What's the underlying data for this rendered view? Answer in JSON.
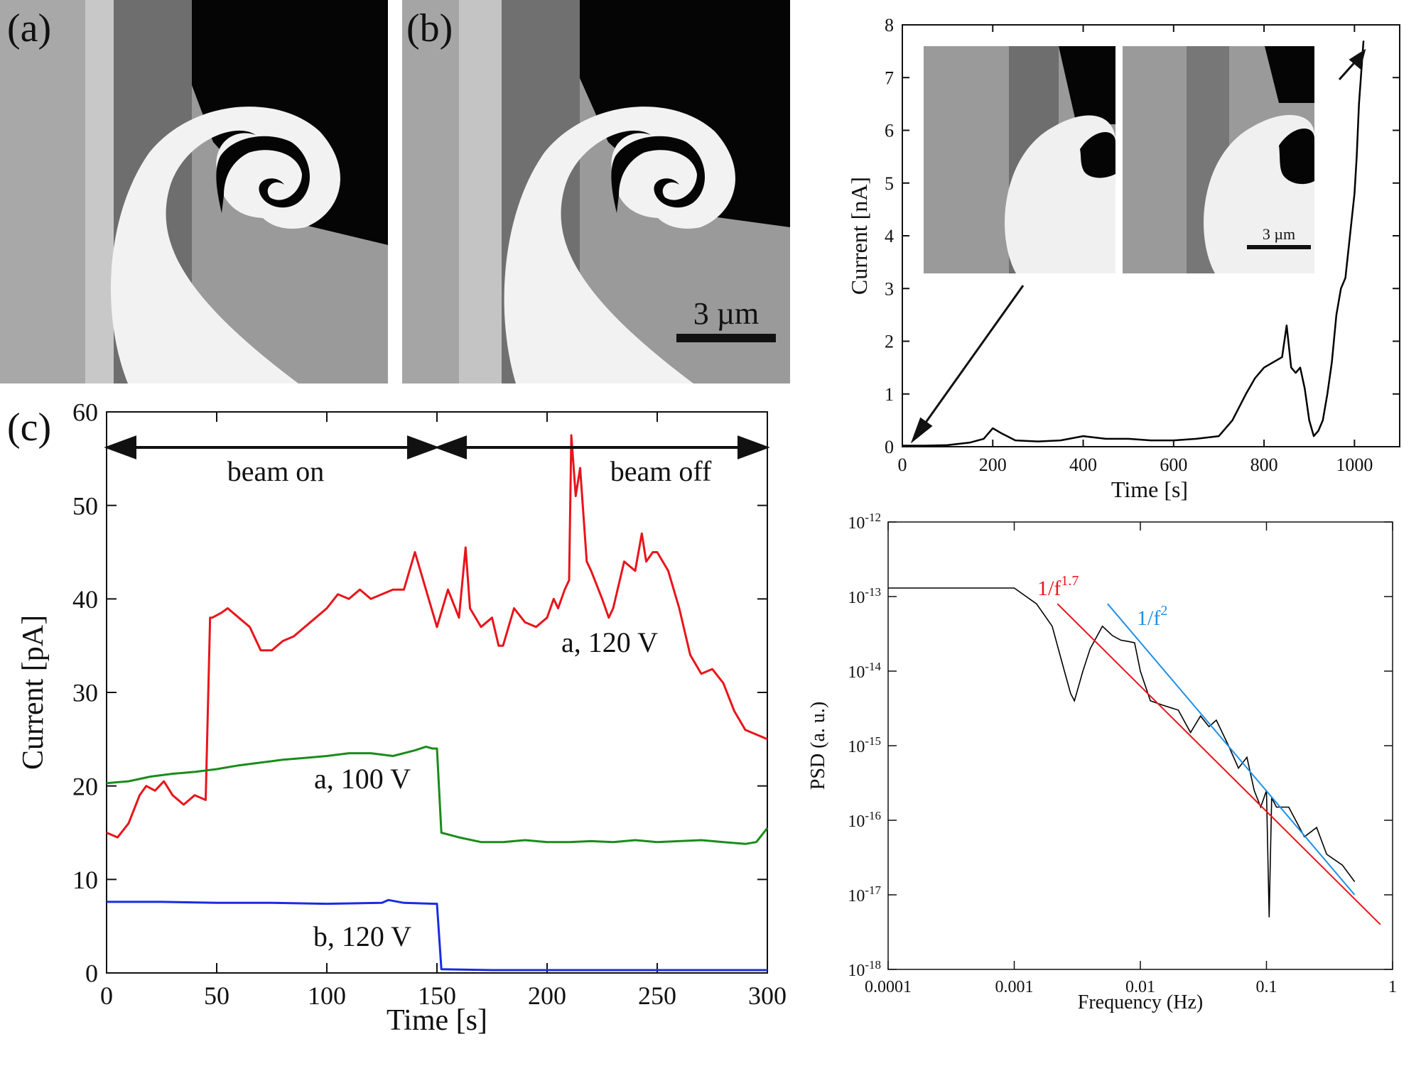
{
  "panel_labels": {
    "a": "(a)",
    "b": "(b)",
    "c": "(c)"
  },
  "scalebar_main": "3 µm",
  "scalebar_inset": "3 µm",
  "colors": {
    "red": "#e8141b",
    "green": "#1a8c1a",
    "blue": "#1a2ce0",
    "black": "#000000",
    "psd_blue": "#1e8fe6"
  },
  "chart_data": [
    {
      "id": "c",
      "type": "line",
      "xlabel": "Time [s]",
      "ylabel": "Current [pA]",
      "xlim": [
        0,
        300
      ],
      "ylim": [
        0,
        60
      ],
      "xticks": [
        "0",
        "50",
        "100",
        "150",
        "200",
        "250",
        "300"
      ],
      "yticks": [
        "0",
        "10",
        "20",
        "30",
        "40",
        "50",
        "60"
      ],
      "annotations": {
        "beam_on": "beam on",
        "beam_off": "beam off"
      },
      "series": [
        {
          "name": "a, 120 V",
          "color": "#e8141b",
          "x": [
            0,
            5,
            10,
            15,
            18,
            22,
            26,
            30,
            35,
            40,
            45,
            47,
            48,
            52,
            55,
            60,
            65,
            70,
            75,
            80,
            85,
            90,
            95,
            100,
            105,
            110,
            115,
            120,
            125,
            130,
            135,
            140,
            145,
            150,
            155,
            160,
            163,
            165,
            170,
            175,
            178,
            180,
            185,
            190,
            195,
            200,
            203,
            205,
            208,
            210,
            211,
            213,
            215,
            218,
            220,
            225,
            228,
            230,
            235,
            240,
            243,
            245,
            248,
            250,
            255,
            260,
            265,
            270,
            275,
            280,
            285,
            290,
            295,
            300
          ],
          "y": [
            15,
            14.5,
            16,
            19,
            20,
            19.5,
            20.5,
            19,
            18,
            19,
            18.5,
            38,
            38,
            38.5,
            39,
            38,
            37,
            34.5,
            34.5,
            35.5,
            36,
            37,
            38,
            39,
            40.5,
            40,
            41,
            40,
            40.5,
            41,
            41,
            45,
            41,
            37,
            41,
            38,
            45.5,
            39,
            37,
            38,
            35,
            35,
            39,
            37.5,
            37,
            38,
            40,
            39,
            41,
            42,
            57.5,
            51,
            54,
            44,
            43,
            40,
            38,
            39,
            44,
            43,
            47,
            44,
            45,
            45,
            43,
            39,
            34,
            32,
            32.5,
            31,
            28,
            26,
            25.5,
            25
          ]
        },
        {
          "name": "a, 100 V",
          "color": "#1a8c1a",
          "x": [
            0,
            10,
            20,
            30,
            40,
            50,
            60,
            70,
            80,
            90,
            100,
            110,
            120,
            130,
            140,
            145,
            148,
            150,
            152,
            160,
            170,
            180,
            190,
            200,
            210,
            220,
            230,
            240,
            250,
            260,
            270,
            280,
            290,
            295,
            300
          ],
          "y": [
            20.3,
            20.5,
            21,
            21.3,
            21.5,
            21.8,
            22.2,
            22.5,
            22.8,
            23.0,
            23.2,
            23.5,
            23.5,
            23.2,
            23.8,
            24.2,
            24.0,
            24.0,
            15,
            14.5,
            14,
            14,
            14.2,
            14,
            14,
            14.1,
            14,
            14.2,
            14,
            14.1,
            14.2,
            14,
            13.8,
            14,
            15.5
          ]
        },
        {
          "name": "b, 120 V",
          "color": "#1a2ce0",
          "x": [
            0,
            25,
            50,
            75,
            100,
            125,
            128,
            135,
            149,
            150,
            152,
            175,
            200,
            225,
            250,
            275,
            300
          ],
          "y": [
            7.6,
            7.6,
            7.5,
            7.5,
            7.4,
            7.5,
            7.8,
            7.5,
            7.4,
            7.4,
            0.4,
            0.3,
            0.3,
            0.3,
            0.3,
            0.3,
            0.3
          ]
        }
      ]
    },
    {
      "id": "top-right",
      "type": "line",
      "xlabel": "Time [s]",
      "ylabel": "Current [nA]",
      "xlim": [
        0,
        1100
      ],
      "ylim": [
        0,
        8
      ],
      "xticks": [
        "0",
        "200",
        "400",
        "600",
        "800",
        "1000"
      ],
      "yticks": [
        "0",
        "1",
        "2",
        "3",
        "4",
        "5",
        "6",
        "7",
        "8"
      ],
      "series": [
        {
          "name": "",
          "color": "#000000",
          "x": [
            0,
            50,
            100,
            150,
            180,
            200,
            220,
            250,
            300,
            350,
            400,
            450,
            500,
            550,
            600,
            650,
            700,
            730,
            760,
            780,
            800,
            820,
            840,
            850,
            860,
            870,
            880,
            890,
            900,
            910,
            920,
            930,
            940,
            950,
            960,
            970,
            980,
            990,
            1000,
            1005,
            1010,
            1020
          ],
          "y": [
            0.02,
            0.02,
            0.03,
            0.08,
            0.15,
            0.35,
            0.25,
            0.12,
            0.1,
            0.12,
            0.2,
            0.15,
            0.15,
            0.12,
            0.12,
            0.15,
            0.2,
            0.5,
            1.0,
            1.3,
            1.5,
            1.6,
            1.7,
            2.3,
            1.5,
            1.4,
            1.5,
            1.1,
            0.5,
            0.2,
            0.3,
            0.5,
            1.0,
            1.6,
            2.5,
            3.0,
            3.2,
            4.0,
            4.8,
            5.5,
            6.5,
            7.7
          ]
        }
      ]
    },
    {
      "id": "psd",
      "type": "line",
      "xlabel": "Frequency (Hz)",
      "ylabel": "PSD (a. u.)",
      "xscale": "log",
      "yscale": "log",
      "xlim": [
        0.0001,
        1
      ],
      "ylim": [
        1e-18,
        1e-12
      ],
      "xticks": [
        "0.0001",
        "0.001",
        "0.01",
        "0.1",
        "1"
      ],
      "ytick_base": "10",
      "ytick_exponents": [
        "-18",
        "-17",
        "-16",
        "-15",
        "-14",
        "-13",
        "-12"
      ],
      "fit_labels": {
        "red_label": "1/f",
        "red_exp": "1.7",
        "blue_label": "1/f",
        "blue_exp": "2"
      },
      "series": [
        {
          "name": "",
          "color": "#000000",
          "x": [
            0.0001,
            0.001,
            0.0015,
            0.002,
            0.0025,
            0.0028,
            0.003,
            0.0035,
            0.004,
            0.005,
            0.006,
            0.007,
            0.008,
            0.009,
            0.01,
            0.012,
            0.015,
            0.02,
            0.025,
            0.03,
            0.035,
            0.04,
            0.05,
            0.06,
            0.07,
            0.08,
            0.09,
            0.1,
            0.105,
            0.11,
            0.12,
            0.15,
            0.2,
            0.25,
            0.3,
            0.4,
            0.5
          ],
          "y": [
            1.3e-13,
            1.3e-13,
            8e-14,
            4e-14,
            1e-14,
            5e-15,
            4e-15,
            1e-14,
            2e-14,
            4e-14,
            3e-14,
            2.6e-14,
            2.5e-14,
            2.4e-14,
            1e-14,
            4e-15,
            3.5e-15,
            3e-15,
            1.5e-15,
            2.5e-15,
            1.8e-15,
            2.2e-15,
            1e-15,
            5e-16,
            7e-16,
            2.5e-16,
            1.5e-16,
            2.5e-16,
            5e-18,
            2e-16,
            1.5e-16,
            1.5e-16,
            6e-17,
            8e-17,
            3.5e-17,
            2.5e-17,
            1.5e-17
          ]
        },
        {
          "name": "",
          "color": "#e8141b",
          "x": [
            0.0022,
            0.8
          ],
          "y": [
            8e-14,
            4e-18
          ]
        },
        {
          "name": "",
          "color": "#1e8fe6",
          "x": [
            0.0055,
            0.5
          ],
          "y": [
            8e-14,
            1e-17
          ]
        }
      ]
    }
  ]
}
